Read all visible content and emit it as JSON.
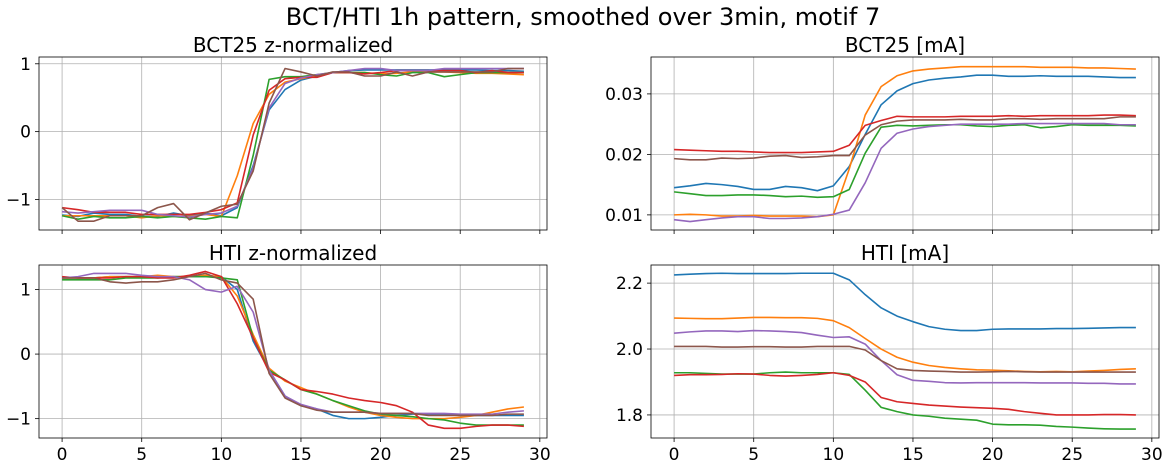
{
  "suptitle": "BCT/HTI 1h pattern, smoothed over 3min, motif 7",
  "colors": [
    "#1f77b4",
    "#ff7f0e",
    "#2ca02c",
    "#d62728",
    "#9467bd",
    "#8c564b"
  ],
  "chart_data": [
    {
      "type": "line",
      "title": "BCT25 z-normalized",
      "xlim": [
        -1.45,
        30.45
      ],
      "ylim": [
        -1.45,
        1.1
      ],
      "xticks": [
        0,
        5,
        10,
        15,
        20,
        25,
        30
      ],
      "xtick_labels": [
        "",
        "",
        "",
        "",
        "",
        "",
        ""
      ],
      "yticks": [
        1,
        0,
        -1
      ],
      "ytick_labels": [
        "1",
        "0",
        "−1"
      ],
      "grid": true,
      "series": [
        {
          "values": [
            -1.23,
            -1.25,
            -1.2,
            -1.22,
            -1.22,
            -1.25,
            -1.25,
            -1.2,
            -1.24,
            -1.2,
            -1.24,
            -1.12,
            -0.5,
            0.32,
            0.62,
            0.76,
            0.82,
            0.87,
            0.9,
            0.91,
            0.91,
            0.91,
            0.91,
            0.91,
            0.91,
            0.91,
            0.91,
            0.9,
            0.9,
            0.89
          ]
        },
        {
          "values": [
            -1.24,
            -1.24,
            -1.24,
            -1.24,
            -1.24,
            -1.27,
            -1.24,
            -1.25,
            -1.25,
            -1.22,
            -1.25,
            -0.65,
            0.12,
            0.55,
            0.73,
            0.78,
            0.82,
            0.87,
            0.87,
            0.87,
            0.85,
            0.86,
            0.88,
            0.88,
            0.88,
            0.87,
            0.86,
            0.86,
            0.85,
            0.84
          ]
        },
        {
          "values": [
            -1.24,
            -1.29,
            -1.25,
            -1.27,
            -1.27,
            -1.25,
            -1.27,
            -1.25,
            -1.27,
            -1.29,
            -1.25,
            -1.27,
            -0.35,
            0.77,
            0.81,
            0.81,
            0.84,
            0.87,
            0.87,
            0.87,
            0.84,
            0.82,
            0.87,
            0.87,
            0.81,
            0.84,
            0.87,
            0.87,
            0.87,
            0.87
          ]
        },
        {
          "values": [
            -1.12,
            -1.15,
            -1.19,
            -1.19,
            -1.19,
            -1.22,
            -1.22,
            -1.22,
            -1.22,
            -1.19,
            -1.15,
            -1.05,
            -0.05,
            0.61,
            0.78,
            0.8,
            0.8,
            0.87,
            0.87,
            0.85,
            0.87,
            0.9,
            0.9,
            0.9,
            0.9,
            0.9,
            0.87,
            0.9,
            0.87,
            0.87
          ]
        },
        {
          "values": [
            -1.18,
            -1.2,
            -1.18,
            -1.16,
            -1.16,
            -1.16,
            -1.22,
            -1.24,
            -1.26,
            -1.22,
            -1.2,
            -1.1,
            -0.53,
            0.35,
            0.71,
            0.79,
            0.84,
            0.87,
            0.9,
            0.93,
            0.93,
            0.9,
            0.9,
            0.9,
            0.93,
            0.93,
            0.93,
            0.93,
            0.93,
            0.93
          ]
        },
        {
          "values": [
            -1.12,
            -1.32,
            -1.32,
            -1.24,
            -1.24,
            -1.24,
            -1.12,
            -1.06,
            -1.3,
            -1.2,
            -1.1,
            -1.07,
            -0.58,
            0.42,
            0.93,
            0.88,
            0.82,
            0.88,
            0.88,
            0.82,
            0.82,
            0.88,
            0.82,
            0.88,
            0.88,
            0.88,
            0.88,
            0.88,
            0.93,
            0.93
          ]
        }
      ]
    },
    {
      "type": "line",
      "title": "BCT25 [mA]",
      "xlim": [
        -1.45,
        30.45
      ],
      "ylim": [
        0.0075,
        0.0361
      ],
      "xticks": [
        0,
        5,
        10,
        15,
        20,
        25,
        30
      ],
      "xtick_labels": [
        "",
        "",
        "",
        "",
        "",
        "",
        ""
      ],
      "yticks": [
        0.03,
        0.02,
        0.01
      ],
      "ytick_labels": [
        "0.03",
        "0.02",
        "0.01"
      ],
      "grid": true,
      "series": [
        {
          "values": [
            0.0145,
            0.0148,
            0.0152,
            0.015,
            0.0147,
            0.0142,
            0.0142,
            0.0147,
            0.0145,
            0.014,
            0.0148,
            0.018,
            0.0233,
            0.0282,
            0.0305,
            0.0317,
            0.0323,
            0.0326,
            0.0328,
            0.0331,
            0.0331,
            0.0329,
            0.0329,
            0.033,
            0.0329,
            0.0329,
            0.0329,
            0.0328,
            0.0327,
            0.0327
          ]
        },
        {
          "values": [
            0.01,
            0.0101,
            0.01,
            0.0098,
            0.0098,
            0.0099,
            0.0098,
            0.0098,
            0.0098,
            0.0097,
            0.01,
            0.0176,
            0.0265,
            0.0312,
            0.033,
            0.0338,
            0.0341,
            0.0343,
            0.0345,
            0.0345,
            0.0345,
            0.0345,
            0.0345,
            0.0344,
            0.0344,
            0.0344,
            0.0343,
            0.0343,
            0.0342,
            0.0341
          ]
        },
        {
          "values": [
            0.0138,
            0.0135,
            0.0132,
            0.0132,
            0.0133,
            0.0133,
            0.0132,
            0.013,
            0.0131,
            0.0129,
            0.013,
            0.0142,
            0.0202,
            0.0245,
            0.0248,
            0.0247,
            0.0248,
            0.0249,
            0.0249,
            0.0247,
            0.0246,
            0.0248,
            0.0249,
            0.0244,
            0.0246,
            0.0249,
            0.0248,
            0.0248,
            0.0248,
            0.0247
          ]
        },
        {
          "values": [
            0.0208,
            0.0207,
            0.0206,
            0.0205,
            0.0205,
            0.0204,
            0.0203,
            0.0203,
            0.0203,
            0.0204,
            0.0205,
            0.0215,
            0.0248,
            0.0256,
            0.0263,
            0.0262,
            0.0262,
            0.0262,
            0.0263,
            0.0263,
            0.0263,
            0.0264,
            0.0263,
            0.0264,
            0.0264,
            0.0264,
            0.0264,
            0.0265,
            0.0265,
            0.0264
          ]
        },
        {
          "values": [
            0.0092,
            0.0089,
            0.0092,
            0.0095,
            0.0097,
            0.0097,
            0.0094,
            0.0094,
            0.0095,
            0.0097,
            0.0101,
            0.0108,
            0.0153,
            0.021,
            0.0235,
            0.0242,
            0.0246,
            0.0248,
            0.025,
            0.025,
            0.025,
            0.025,
            0.0251,
            0.0251,
            0.0251,
            0.0251,
            0.0251,
            0.0251,
            0.0249,
            0.0249
          ]
        },
        {
          "values": [
            0.0193,
            0.0191,
            0.0191,
            0.0194,
            0.0193,
            0.0194,
            0.0197,
            0.0198,
            0.0195,
            0.0196,
            0.0198,
            0.0198,
            0.0232,
            0.0249,
            0.0255,
            0.0257,
            0.0257,
            0.0257,
            0.0258,
            0.0257,
            0.0257,
            0.0259,
            0.0259,
            0.0258,
            0.0259,
            0.0259,
            0.0259,
            0.0259,
            0.0262,
            0.0262
          ]
        }
      ]
    },
    {
      "type": "line",
      "title": "HTI z-normalized",
      "xlim": [
        -1.45,
        30.45
      ],
      "ylim": [
        -1.3,
        1.38
      ],
      "xticks": [
        0,
        5,
        10,
        15,
        20,
        25,
        30
      ],
      "xtick_labels": [
        "0",
        "5",
        "10",
        "15",
        "20",
        "25",
        "30"
      ],
      "yticks": [
        1,
        0,
        -1
      ],
      "ytick_labels": [
        "1",
        "0",
        "−1"
      ],
      "grid": true,
      "series": [
        {
          "values": [
            1.18,
            1.18,
            1.18,
            1.2,
            1.2,
            1.2,
            1.2,
            1.2,
            1.2,
            1.2,
            1.2,
            1.0,
            0.2,
            -0.25,
            -0.65,
            -0.8,
            -0.85,
            -0.95,
            -1.0,
            -1.0,
            -0.98,
            -0.95,
            -0.93,
            -0.93,
            -0.93,
            -0.95,
            -0.95,
            -0.95,
            -0.95,
            -0.95
          ]
        },
        {
          "values": [
            1.18,
            1.18,
            1.18,
            1.2,
            1.2,
            1.2,
            1.22,
            1.2,
            1.2,
            1.22,
            1.2,
            0.9,
            0.3,
            -0.22,
            -0.42,
            -0.52,
            -0.62,
            -0.72,
            -0.82,
            -0.9,
            -0.95,
            -0.98,
            -1.0,
            -1.0,
            -1.0,
            -0.98,
            -0.95,
            -0.9,
            -0.85,
            -0.82
          ]
        },
        {
          "values": [
            1.15,
            1.15,
            1.15,
            1.15,
            1.18,
            1.18,
            1.18,
            1.2,
            1.2,
            1.2,
            1.18,
            1.15,
            0.25,
            -0.25,
            -0.4,
            -0.55,
            -0.62,
            -0.72,
            -0.8,
            -0.88,
            -0.93,
            -0.95,
            -0.97,
            -1.0,
            -1.02,
            -1.07,
            -1.1,
            -1.1,
            -1.1,
            -1.1
          ]
        },
        {
          "values": [
            1.2,
            1.18,
            1.18,
            1.18,
            1.2,
            1.2,
            1.18,
            1.18,
            1.22,
            1.28,
            1.2,
            0.78,
            0.25,
            -0.28,
            -0.4,
            -0.55,
            -0.58,
            -0.62,
            -0.68,
            -0.72,
            -0.75,
            -0.8,
            -0.9,
            -1.1,
            -1.15,
            -1.15,
            -1.12,
            -1.1,
            -1.1,
            -1.12
          ]
        },
        {
          "values": [
            1.18,
            1.2,
            1.25,
            1.25,
            1.25,
            1.22,
            1.2,
            1.2,
            1.15,
            1.0,
            0.96,
            1.05,
            0.65,
            -0.25,
            -0.65,
            -0.78,
            -0.85,
            -0.9,
            -0.9,
            -0.9,
            -0.92,
            -0.92,
            -0.92,
            -0.92,
            -0.92,
            -0.93,
            -0.93,
            -0.93,
            -0.9,
            -0.88
          ]
        },
        {
          "values": [
            1.18,
            1.18,
            1.18,
            1.12,
            1.1,
            1.12,
            1.12,
            1.15,
            1.2,
            1.25,
            1.15,
            1.1,
            0.85,
            -0.3,
            -0.68,
            -0.8,
            -0.87,
            -0.9,
            -0.9,
            -0.9,
            -0.92,
            -0.92,
            -0.92,
            -0.95,
            -0.95,
            -0.95,
            -0.95,
            -0.95,
            -0.93,
            -0.93
          ]
        }
      ]
    },
    {
      "type": "line",
      "title": "HTI [mA]",
      "xlim": [
        -1.45,
        30.45
      ],
      "ylim": [
        1.73,
        2.255
      ],
      "xticks": [
        0,
        5,
        10,
        15,
        20,
        25,
        30
      ],
      "xtick_labels": [
        "0",
        "5",
        "10",
        "15",
        "20",
        "25",
        "30"
      ],
      "yticks": [
        2.2,
        2.0,
        1.8
      ],
      "ytick_labels": [
        "2.2",
        "2.0",
        "1.8"
      ],
      "grid": true,
      "series": [
        {
          "values": [
            2.225,
            2.227,
            2.229,
            2.23,
            2.229,
            2.229,
            2.229,
            2.229,
            2.23,
            2.23,
            2.23,
            2.21,
            2.165,
            2.125,
            2.1,
            2.083,
            2.068,
            2.06,
            2.056,
            2.056,
            2.06,
            2.061,
            2.061,
            2.061,
            2.062,
            2.062,
            2.063,
            2.064,
            2.065,
            2.065
          ]
        },
        {
          "values": [
            2.094,
            2.093,
            2.092,
            2.092,
            2.094,
            2.096,
            2.096,
            2.095,
            2.095,
            2.093,
            2.086,
            2.065,
            2.032,
            2.0,
            1.975,
            1.96,
            1.95,
            1.944,
            1.94,
            1.937,
            1.936,
            1.934,
            1.932,
            1.931,
            1.932,
            1.931,
            1.933,
            1.935,
            1.938,
            1.94
          ]
        },
        {
          "values": [
            1.928,
            1.928,
            1.926,
            1.924,
            1.924,
            1.924,
            1.928,
            1.93,
            1.928,
            1.928,
            1.928,
            1.923,
            1.875,
            1.823,
            1.81,
            1.8,
            1.796,
            1.79,
            1.787,
            1.784,
            1.772,
            1.77,
            1.77,
            1.769,
            1.765,
            1.763,
            1.76,
            1.758,
            1.757,
            1.757
          ]
        },
        {
          "values": [
            1.92,
            1.922,
            1.922,
            1.923,
            1.925,
            1.924,
            1.92,
            1.918,
            1.92,
            1.923,
            1.928,
            1.92,
            1.9,
            1.853,
            1.84,
            1.835,
            1.83,
            1.827,
            1.824,
            1.822,
            1.82,
            1.817,
            1.81,
            1.805,
            1.8,
            1.8,
            1.8,
            1.801,
            1.801,
            1.8
          ]
        },
        {
          "values": [
            2.048,
            2.052,
            2.055,
            2.055,
            2.053,
            2.056,
            2.055,
            2.053,
            2.05,
            2.042,
            2.035,
            2.037,
            2.015,
            1.965,
            1.922,
            1.905,
            1.902,
            1.898,
            1.897,
            1.898,
            1.898,
            1.898,
            1.898,
            1.897,
            1.897,
            1.897,
            1.896,
            1.896,
            1.894,
            1.894
          ]
        },
        {
          "values": [
            2.008,
            2.008,
            2.008,
            2.006,
            2.006,
            2.007,
            2.007,
            2.006,
            2.006,
            2.008,
            2.008,
            2.008,
            1.997,
            1.965,
            1.94,
            1.935,
            1.933,
            1.932,
            1.93,
            1.93,
            1.931,
            1.932,
            1.931,
            1.93,
            1.93,
            1.93,
            1.93,
            1.93,
            1.93,
            1.93
          ]
        }
      ]
    }
  ]
}
